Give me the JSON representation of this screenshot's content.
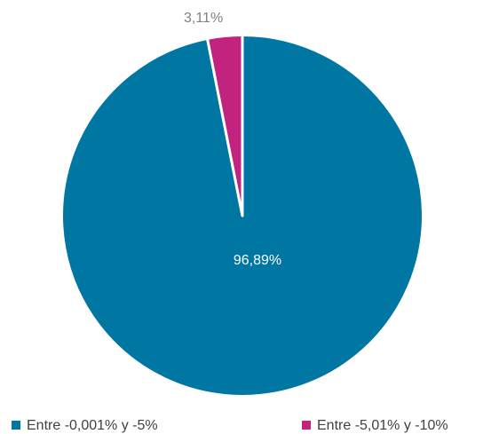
{
  "chart_data": {
    "type": "pie",
    "categories": [
      "Entre -0,001% y -5%",
      "Entre -5,01% y -10%"
    ],
    "values": [
      96.89,
      3.11
    ],
    "value_labels": [
      "96,89%",
      "3,11%"
    ],
    "colors": [
      "#0077a3",
      "#c2237f"
    ],
    "legend": "bottom"
  }
}
